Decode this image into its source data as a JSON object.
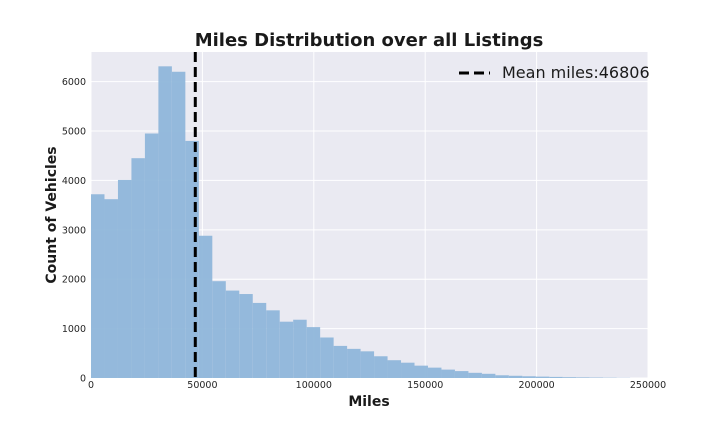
{
  "chart_data": {
    "type": "bar",
    "title": "Miles Distribution over all Listings",
    "xlabel": "Miles",
    "ylabel": "Count of Vehicles",
    "xlim": [
      0,
      250000
    ],
    "ylim": [
      0,
      6600
    ],
    "xticks": [
      0,
      50000,
      100000,
      150000,
      200000,
      250000
    ],
    "yticks": [
      0,
      1000,
      2000,
      3000,
      4000,
      5000,
      6000
    ],
    "bin_width": 6050,
    "bins_start": 0,
    "values": [
      3720,
      3620,
      4010,
      4450,
      4950,
      6310,
      6200,
      4800,
      2880,
      1960,
      1770,
      1700,
      1520,
      1370,
      1140,
      1180,
      1030,
      820,
      650,
      590,
      540,
      440,
      360,
      310,
      250,
      210,
      170,
      140,
      105,
      85,
      55,
      45,
      35,
      28,
      22,
      16,
      12,
      9,
      6,
      3
    ],
    "mean_line": {
      "value": 46806,
      "label": "Mean miles:46806"
    },
    "legend_position": "top-right",
    "grid": true,
    "colors": {
      "bar": "#8fb6da",
      "plot_bg": "#eaeaf2",
      "grid": "#ffffff",
      "mean_line": "#000000"
    }
  }
}
